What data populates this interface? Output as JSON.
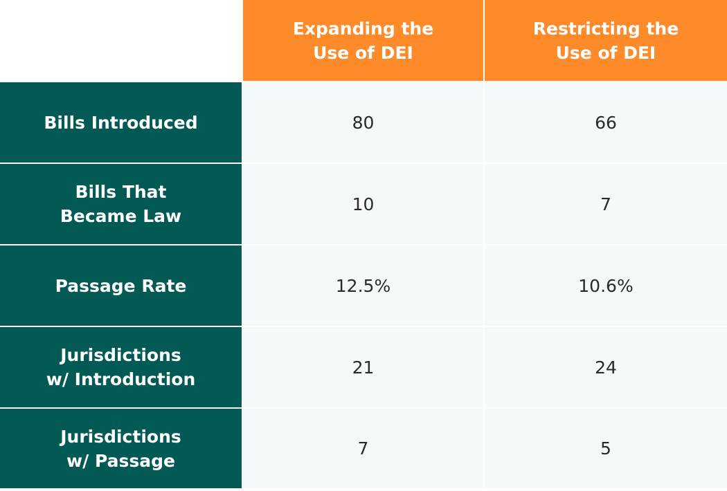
{
  "chart_data": {
    "type": "table",
    "columns": [
      "",
      "Expanding the\nUse of DEI",
      "Restricting the\nUse of DEI"
    ],
    "rows": [
      {
        "label": "Bills Introduced",
        "values": [
          "80",
          "66"
        ]
      },
      {
        "label": "Bills That\nBecame Law",
        "values": [
          "10",
          "7"
        ]
      },
      {
        "label": "Passage Rate",
        "values": [
          "12.5%",
          "10.6%"
        ]
      },
      {
        "label": "Jurisdictions\nw/ Introduction",
        "values": [
          "21",
          "24"
        ]
      },
      {
        "label": "Jurisdictions\nw/ Passage",
        "values": [
          "7",
          "5"
        ]
      }
    ]
  },
  "colors": {
    "header_bg": "#ff8a2a",
    "row_header_bg": "#035a55",
    "cell_bg": "#f4f9f9",
    "header_text": "#ffffff",
    "cell_text": "#2a2a2a"
  }
}
